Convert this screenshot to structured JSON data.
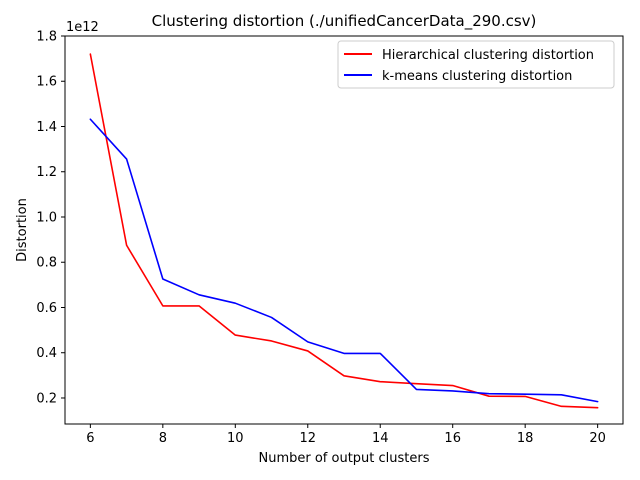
{
  "chart_data": {
    "type": "line",
    "title": "Clustering distortion (./unifiedCancerData_290.csv)",
    "xlabel": "Number of output clusters",
    "ylabel": "Distortion",
    "y_offset_label": "1e12",
    "xlim": [
      5.3,
      20.7
    ],
    "ylim": [
      0.085,
      1.8
    ],
    "xticks": [
      6,
      8,
      10,
      12,
      14,
      16,
      18,
      20
    ],
    "yticks": [
      0.2,
      0.4,
      0.6,
      0.8,
      1.0,
      1.2,
      1.4,
      1.6,
      1.8
    ],
    "ytick_labels": [
      "0.2",
      "0.4",
      "0.6",
      "0.8",
      "1.0",
      "1.2",
      "1.4",
      "1.6",
      "1.8"
    ],
    "grid": false,
    "legend_position": "top-right",
    "x": [
      6,
      7,
      8,
      9,
      10,
      11,
      12,
      13,
      14,
      15,
      16,
      17,
      18,
      19,
      20
    ],
    "series": [
      {
        "name": "Hierarchical clustering distortion",
        "color": "#ff0000",
        "values": [
          1.72,
          0.875,
          0.607,
          0.607,
          0.478,
          0.452,
          0.408,
          0.298,
          0.272,
          0.263,
          0.255,
          0.208,
          0.207,
          0.163,
          0.157
        ]
      },
      {
        "name": "k-means clustering distortion",
        "color": "#0000ff",
        "values": [
          1.432,
          1.256,
          0.726,
          0.656,
          0.619,
          0.556,
          0.448,
          0.397,
          0.397,
          0.238,
          0.231,
          0.219,
          0.217,
          0.214,
          0.184
        ]
      }
    ]
  }
}
